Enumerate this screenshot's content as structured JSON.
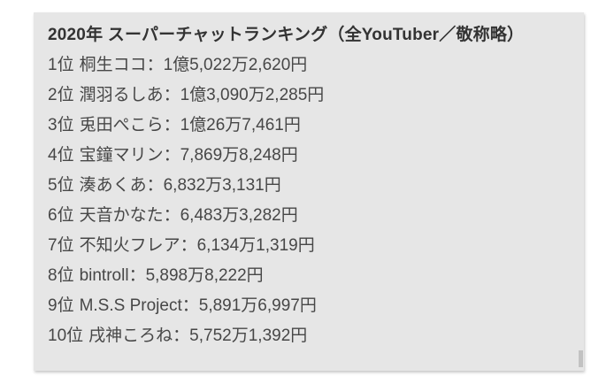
{
  "colors": {
    "panel_bg": "#e6e6e6",
    "title_text": "#333333",
    "item_text": "#474747",
    "scrollbar_thumb": "#c2c2c2"
  },
  "panel": {
    "title": "2020年 スーパーチャットランキング（全YouTuber／敬称略）",
    "separator": "：",
    "items": [
      {
        "rank": "1位",
        "name": "桐生ココ",
        "amount": "1億5,022万2,620円"
      },
      {
        "rank": "2位",
        "name": "潤羽るしあ",
        "amount": "1億3,090万2,285円"
      },
      {
        "rank": "3位",
        "name": "兎田ぺこら",
        "amount": "1億26万7,461円"
      },
      {
        "rank": "4位",
        "name": "宝鐘マリン",
        "amount": "7,869万8,248円"
      },
      {
        "rank": "5位",
        "name": "湊あくあ",
        "amount": "6,832万3,131円"
      },
      {
        "rank": "6位",
        "name": "天音かなた",
        "amount": "6,483万3,282円"
      },
      {
        "rank": "7位",
        "name": "不知火フレア",
        "amount": "6,134万1,319円"
      },
      {
        "rank": "8位",
        "name": "bintroll",
        "amount": "5,898万8,222円"
      },
      {
        "rank": "9位",
        "name": "M.S.S Project",
        "amount": "5,891万6,997円"
      },
      {
        "rank": "10位",
        "name": "戌神ころね",
        "amount": "5,752万1,392円"
      }
    ]
  }
}
